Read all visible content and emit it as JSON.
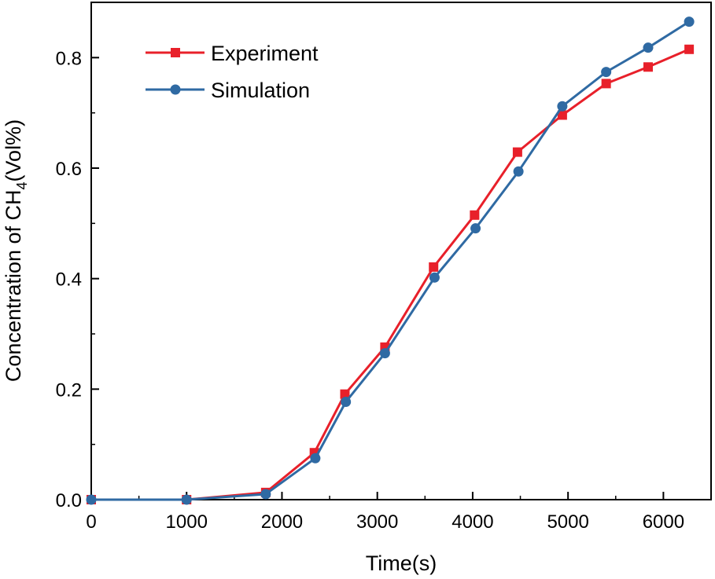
{
  "chart_data": {
    "type": "line",
    "title": "",
    "xlabel": "Time(s)",
    "ylabel": {
      "main": "Concentration of CH",
      "subscript": "4",
      "suffix": "(Vol%)"
    },
    "xlim": [
      0,
      6500
    ],
    "ylim": [
      0,
      0.9
    ],
    "xticks": [
      0,
      1000,
      2000,
      3000,
      4000,
      5000,
      6000
    ],
    "xtick_labels": [
      "0",
      "1000",
      "2000",
      "3000",
      "4000",
      "5000",
      "6000"
    ],
    "yticks": [
      0,
      0.2,
      0.4,
      0.6,
      0.8
    ],
    "ytick_labels": [
      "0.0",
      "0.2",
      "0.4",
      "0.6",
      "0.8"
    ],
    "grid": false,
    "legend_position": "top-left",
    "series": [
      {
        "name": "Experiment",
        "color": "#e8202a",
        "marker": "square",
        "x": [
          0,
          1000,
          1830,
          2340,
          2660,
          3080,
          3590,
          4020,
          4470,
          4940,
          5400,
          5840,
          6270
        ],
        "y": [
          0.0,
          0.0,
          0.013,
          0.085,
          0.191,
          0.276,
          0.421,
          0.515,
          0.629,
          0.696,
          0.753,
          0.783,
          0.815
        ]
      },
      {
        "name": "Simulation",
        "color": "#2f6aa3",
        "marker": "circle",
        "x": [
          0,
          1000,
          1830,
          2350,
          2670,
          3080,
          3600,
          4030,
          4480,
          4940,
          5400,
          5840,
          6270
        ],
        "y": [
          0.0,
          0.0,
          0.01,
          0.075,
          0.177,
          0.265,
          0.402,
          0.491,
          0.594,
          0.712,
          0.774,
          0.818,
          0.865
        ]
      }
    ]
  }
}
